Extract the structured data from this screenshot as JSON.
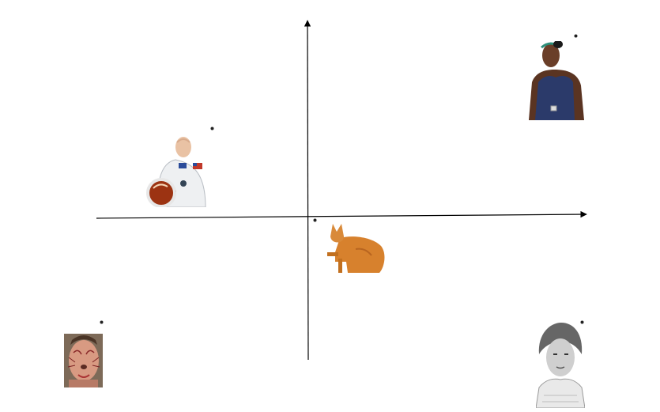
{
  "items": [
    {
      "icon": "astronaut-icon",
      "label": ""
    },
    {
      "icon": "tennis-player-icon",
      "label": ""
    },
    {
      "icon": "cat-icon",
      "label": ""
    },
    {
      "icon": "face-paint-man-icon",
      "label": ""
    },
    {
      "icon": "scientist-portrait-icon",
      "label": ""
    }
  ]
}
